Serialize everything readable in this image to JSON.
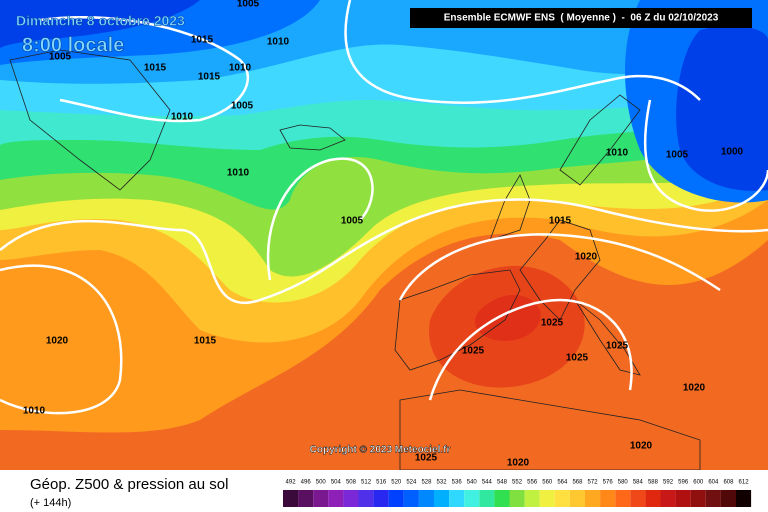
{
  "header": {
    "title": "Dimanche 8 octobre 2023",
    "time": "8:00 locale",
    "run": "Ensemble ECMWF ENS  ( Moyenne )  -  06 Z du 02/10/2023"
  },
  "isobar_labels": [
    "1005",
    "1005",
    "1015",
    "1010",
    "1015",
    "1010",
    "1015",
    "1005",
    "1010",
    "1010",
    "1005",
    "1010",
    "1005",
    "1000",
    "1015",
    "1020",
    "1020",
    "1015",
    "1025",
    "1025",
    "1025",
    "1025",
    "1010",
    "1020",
    "1020",
    "1020",
    "1025"
  ],
  "copyright": "Copyright © 2023 Meteociel.fr",
  "footer": {
    "title": "Géop. Z500 & pression au sol",
    "lead": "(+ 144h)"
  },
  "legend": {
    "labels": [
      "492",
      "496",
      "500",
      "504",
      "508",
      "512",
      "516",
      "520",
      "524",
      "528",
      "532",
      "536",
      "540",
      "544",
      "548",
      "552",
      "556",
      "560",
      "564",
      "568",
      "572",
      "576",
      "580",
      "584",
      "588",
      "592",
      "596",
      "600",
      "604",
      "608",
      "612"
    ],
    "colors": [
      "#3a0a3a",
      "#5a1060",
      "#7a1890",
      "#8e20b8",
      "#7a28d8",
      "#5030e8",
      "#2828f0",
      "#0040ff",
      "#0060ff",
      "#0088ff",
      "#00b0ff",
      "#30d8ff",
      "#40f0e0",
      "#30e8a0",
      "#30e050",
      "#80e040",
      "#c0f040",
      "#f0f040",
      "#ffe040",
      "#ffc830",
      "#ffa820",
      "#ff8818",
      "#ff6818",
      "#f04818",
      "#e02810",
      "#c81818",
      "#b01010",
      "#901010",
      "#701010",
      "#500808",
      "#100000"
    ]
  }
}
